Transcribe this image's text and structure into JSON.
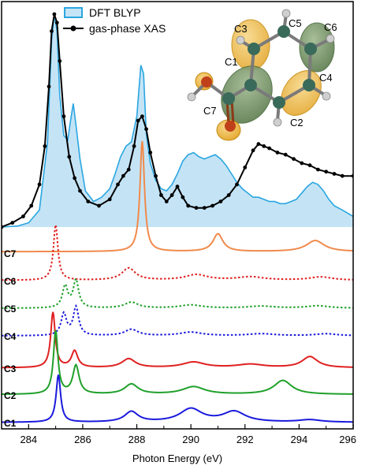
{
  "chart_data": {
    "type": "line",
    "title": "",
    "xlabel": "Photon Energy (eV)",
    "ylabel": "",
    "xlim": [
      283,
      296
    ],
    "xticks": [
      "284",
      "286",
      "288",
      "290",
      "292",
      "294",
      "296"
    ],
    "legend": {
      "placement": "top-center",
      "entries": [
        {
          "name": "DFT BLYP",
          "style": "filled-area"
        },
        {
          "name": "gas-phase XAS",
          "style": "line-with-dots"
        }
      ]
    },
    "top_panel": {
      "dft_blyp": {
        "name": "DFT BLYP",
        "color": "#2aa6e0",
        "fill": "#c4e4f6",
        "x": [
          283.0,
          283.6,
          284.0,
          284.4,
          284.7,
          284.85,
          284.95,
          285.05,
          285.15,
          285.3,
          285.45,
          285.55,
          285.65,
          285.75,
          285.9,
          286.1,
          286.4,
          286.7,
          287.0,
          287.2,
          287.4,
          287.6,
          287.8,
          288.0,
          288.15,
          288.25,
          288.35,
          288.5,
          288.7,
          288.9,
          289.1,
          289.3,
          289.5,
          289.7,
          289.9,
          290.1,
          290.3,
          290.5,
          290.7,
          290.9,
          291.1,
          291.3,
          291.5,
          291.7,
          291.9,
          292.1,
          292.3,
          292.5,
          292.7,
          292.9,
          293.1,
          293.3,
          293.5,
          293.7,
          293.9,
          294.1,
          294.3,
          294.5,
          294.7,
          294.9,
          295.1,
          295.3,
          295.6,
          296.0
        ],
        "y": [
          0.0,
          0.005,
          0.02,
          0.08,
          0.4,
          0.88,
          1.0,
          0.92,
          0.62,
          0.43,
          0.41,
          0.5,
          0.58,
          0.48,
          0.32,
          0.17,
          0.12,
          0.14,
          0.18,
          0.25,
          0.33,
          0.38,
          0.4,
          0.52,
          0.76,
          0.72,
          0.44,
          0.3,
          0.22,
          0.18,
          0.17,
          0.2,
          0.25,
          0.31,
          0.34,
          0.35,
          0.33,
          0.32,
          0.33,
          0.34,
          0.32,
          0.29,
          0.25,
          0.21,
          0.18,
          0.16,
          0.14,
          0.14,
          0.13,
          0.12,
          0.12,
          0.11,
          0.11,
          0.12,
          0.13,
          0.16,
          0.19,
          0.21,
          0.2,
          0.17,
          0.13,
          0.1,
          0.08,
          0.05
        ]
      },
      "gas_phase_xas": {
        "name": "gas-phase XAS",
        "color": "#000000",
        "x": [
          283.0,
          283.4,
          283.8,
          284.1,
          284.4,
          284.6,
          284.75,
          284.85,
          284.95,
          285.05,
          285.15,
          285.3,
          285.5,
          285.7,
          285.9,
          286.2,
          286.6,
          287.0,
          287.3,
          287.5,
          287.7,
          287.9,
          288.05,
          288.2,
          288.35,
          288.5,
          288.7,
          288.9,
          289.1,
          289.3,
          289.5,
          289.7,
          289.9,
          290.2,
          290.5,
          290.8,
          291.1,
          291.4,
          291.7,
          292.0,
          292.3,
          292.5,
          292.7,
          292.9,
          293.2,
          293.5,
          293.8,
          294.1,
          294.4,
          294.7,
          295.0,
          295.3,
          295.6,
          296.0
        ],
        "y": [
          0.0,
          0.02,
          0.05,
          0.1,
          0.2,
          0.38,
          0.66,
          0.92,
          1.0,
          0.96,
          0.78,
          0.52,
          0.33,
          0.23,
          0.17,
          0.12,
          0.1,
          0.13,
          0.2,
          0.24,
          0.27,
          0.38,
          0.5,
          0.52,
          0.46,
          0.35,
          0.24,
          0.15,
          0.12,
          0.15,
          0.19,
          0.14,
          0.1,
          0.09,
          0.09,
          0.1,
          0.12,
          0.15,
          0.2,
          0.28,
          0.36,
          0.39,
          0.38,
          0.37,
          0.35,
          0.34,
          0.32,
          0.3,
          0.29,
          0.27,
          0.26,
          0.25,
          0.24,
          0.24
        ]
      }
    },
    "series": [
      {
        "name": "C7",
        "color": "#f08a4b",
        "style": "solid",
        "peaks": [
          [
            288.2,
            1.0,
            0.1
          ],
          [
            291.0,
            0.16,
            0.22
          ],
          [
            294.6,
            0.1,
            0.4
          ]
        ],
        "base": 0.02
      },
      {
        "name": "C6",
        "color": "#e02020",
        "style": "dotted",
        "peaks": [
          [
            285.0,
            1.0,
            0.1
          ],
          [
            287.7,
            0.22,
            0.3
          ],
          [
            290.2,
            0.1,
            0.5
          ],
          [
            292.2,
            0.06,
            0.6
          ],
          [
            294.8,
            0.06,
            0.5
          ]
        ],
        "base": 0.02
      },
      {
        "name": "C5",
        "color": "#1fa02a",
        "style": "dotted",
        "peaks": [
          [
            285.35,
            0.55,
            0.12
          ],
          [
            285.75,
            0.7,
            0.12
          ],
          [
            287.8,
            0.15,
            0.3
          ],
          [
            290.0,
            0.08,
            0.5
          ],
          [
            292.6,
            0.05,
            0.6
          ],
          [
            294.7,
            0.06,
            0.5
          ]
        ],
        "base": 0.02
      },
      {
        "name": "C4",
        "color": "#1a1adc",
        "style": "dotted",
        "peaks": [
          [
            285.3,
            0.55,
            0.12
          ],
          [
            285.75,
            0.72,
            0.12
          ],
          [
            287.8,
            0.16,
            0.3
          ],
          [
            290.0,
            0.09,
            0.5
          ],
          [
            292.6,
            0.05,
            0.6
          ],
          [
            295.0,
            0.05,
            0.5
          ]
        ],
        "base": 0.02
      },
      {
        "name": "C3",
        "color": "#e02020",
        "style": "solid",
        "peaks": [
          [
            284.9,
            1.0,
            0.1
          ],
          [
            285.7,
            0.3,
            0.14
          ],
          [
            287.7,
            0.16,
            0.3
          ],
          [
            290.1,
            0.1,
            0.5
          ],
          [
            292.2,
            0.06,
            0.6
          ],
          [
            294.4,
            0.2,
            0.35
          ]
        ],
        "base": 0.02
      },
      {
        "name": "C2",
        "color": "#1fa02a",
        "style": "solid",
        "peaks": [
          [
            285.0,
            1.0,
            0.1
          ],
          [
            285.75,
            0.45,
            0.14
          ],
          [
            287.8,
            0.16,
            0.3
          ],
          [
            290.1,
            0.12,
            0.5
          ],
          [
            293.4,
            0.22,
            0.4
          ]
        ],
        "base": 0.02
      },
      {
        "name": "C1",
        "color": "#1a1adc",
        "style": "solid",
        "peaks": [
          [
            285.1,
            1.0,
            0.1
          ],
          [
            287.8,
            0.22,
            0.3
          ],
          [
            290.0,
            0.28,
            0.5
          ],
          [
            291.6,
            0.22,
            0.5
          ],
          [
            294.4,
            0.05,
            0.5
          ]
        ],
        "base": 0.02
      }
    ],
    "molecule_labels": [
      "C3",
      "C5",
      "C6",
      "C1",
      "C4",
      "C7",
      "C2"
    ]
  }
}
